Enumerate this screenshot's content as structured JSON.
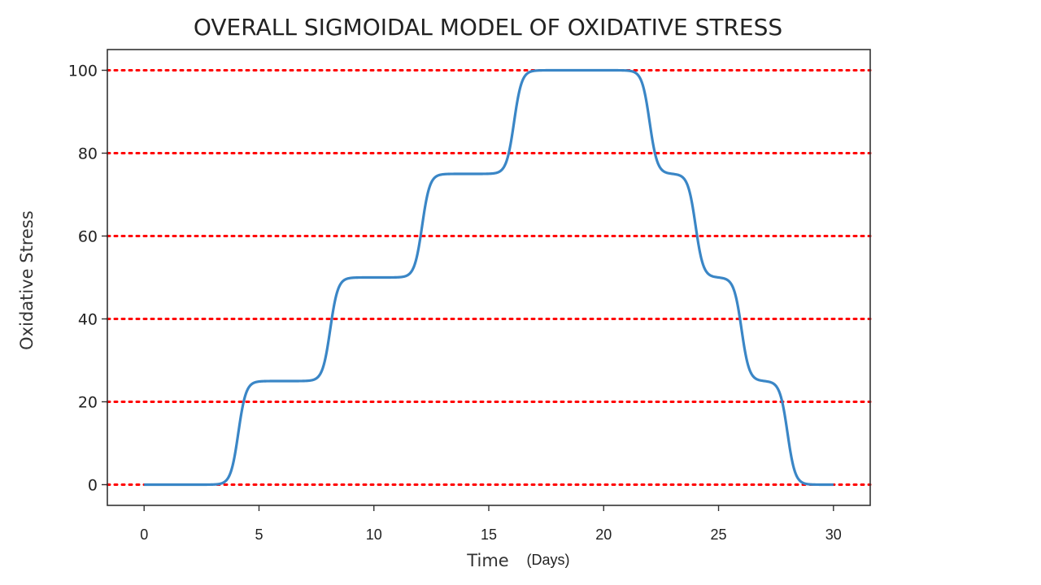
{
  "chart_data": {
    "type": "line",
    "title": "OVERALL SIGMOIDAL MODEL OF OXIDATIVE STRESS",
    "xlabel": "Time",
    "xlabel_unit": "(Days)",
    "ylabel": "Oxidative Stress",
    "xlim": [
      -1.6,
      31.6
    ],
    "ylim": [
      -5,
      105
    ],
    "xticks": [
      0,
      5,
      10,
      15,
      20,
      25,
      30
    ],
    "yticks": [
      0,
      20,
      40,
      60,
      80,
      100
    ],
    "gridlines": {
      "axis": "y",
      "values": [
        0,
        20,
        40,
        60,
        80,
        100
      ],
      "style": "dotted",
      "color": "#ff0000"
    },
    "line_color": "#3a86c6",
    "series": [
      {
        "steps": [
          {
            "center": 4.1,
            "height": 25
          },
          {
            "center": 8.1,
            "height": 25
          },
          {
            "center": 12.1,
            "height": 25
          },
          {
            "center": 16.1,
            "height": 25
          },
          {
            "center": 22.0,
            "height": -25
          },
          {
            "center": 24.0,
            "height": -25
          },
          {
            "center": 26.0,
            "height": -25
          },
          {
            "center": 28.0,
            "height": -25
          }
        ],
        "x_range": [
          0,
          30
        ],
        "key_points": [
          {
            "x": 0,
            "y": 0
          },
          {
            "x": 3.5,
            "y": 0
          },
          {
            "x": 5,
            "y": 25
          },
          {
            "x": 7.5,
            "y": 25
          },
          {
            "x": 9,
            "y": 50
          },
          {
            "x": 11.5,
            "y": 50
          },
          {
            "x": 13,
            "y": 75
          },
          {
            "x": 15.5,
            "y": 75
          },
          {
            "x": 17,
            "y": 100
          },
          {
            "x": 21.5,
            "y": 100
          },
          {
            "x": 22.5,
            "y": 75
          },
          {
            "x": 23.5,
            "y": 75
          },
          {
            "x": 24.5,
            "y": 50
          },
          {
            "x": 25.5,
            "y": 50
          },
          {
            "x": 26.5,
            "y": 25
          },
          {
            "x": 27.5,
            "y": 25
          },
          {
            "x": 28.5,
            "y": 0
          },
          {
            "x": 30,
            "y": 0
          }
        ]
      }
    ]
  }
}
